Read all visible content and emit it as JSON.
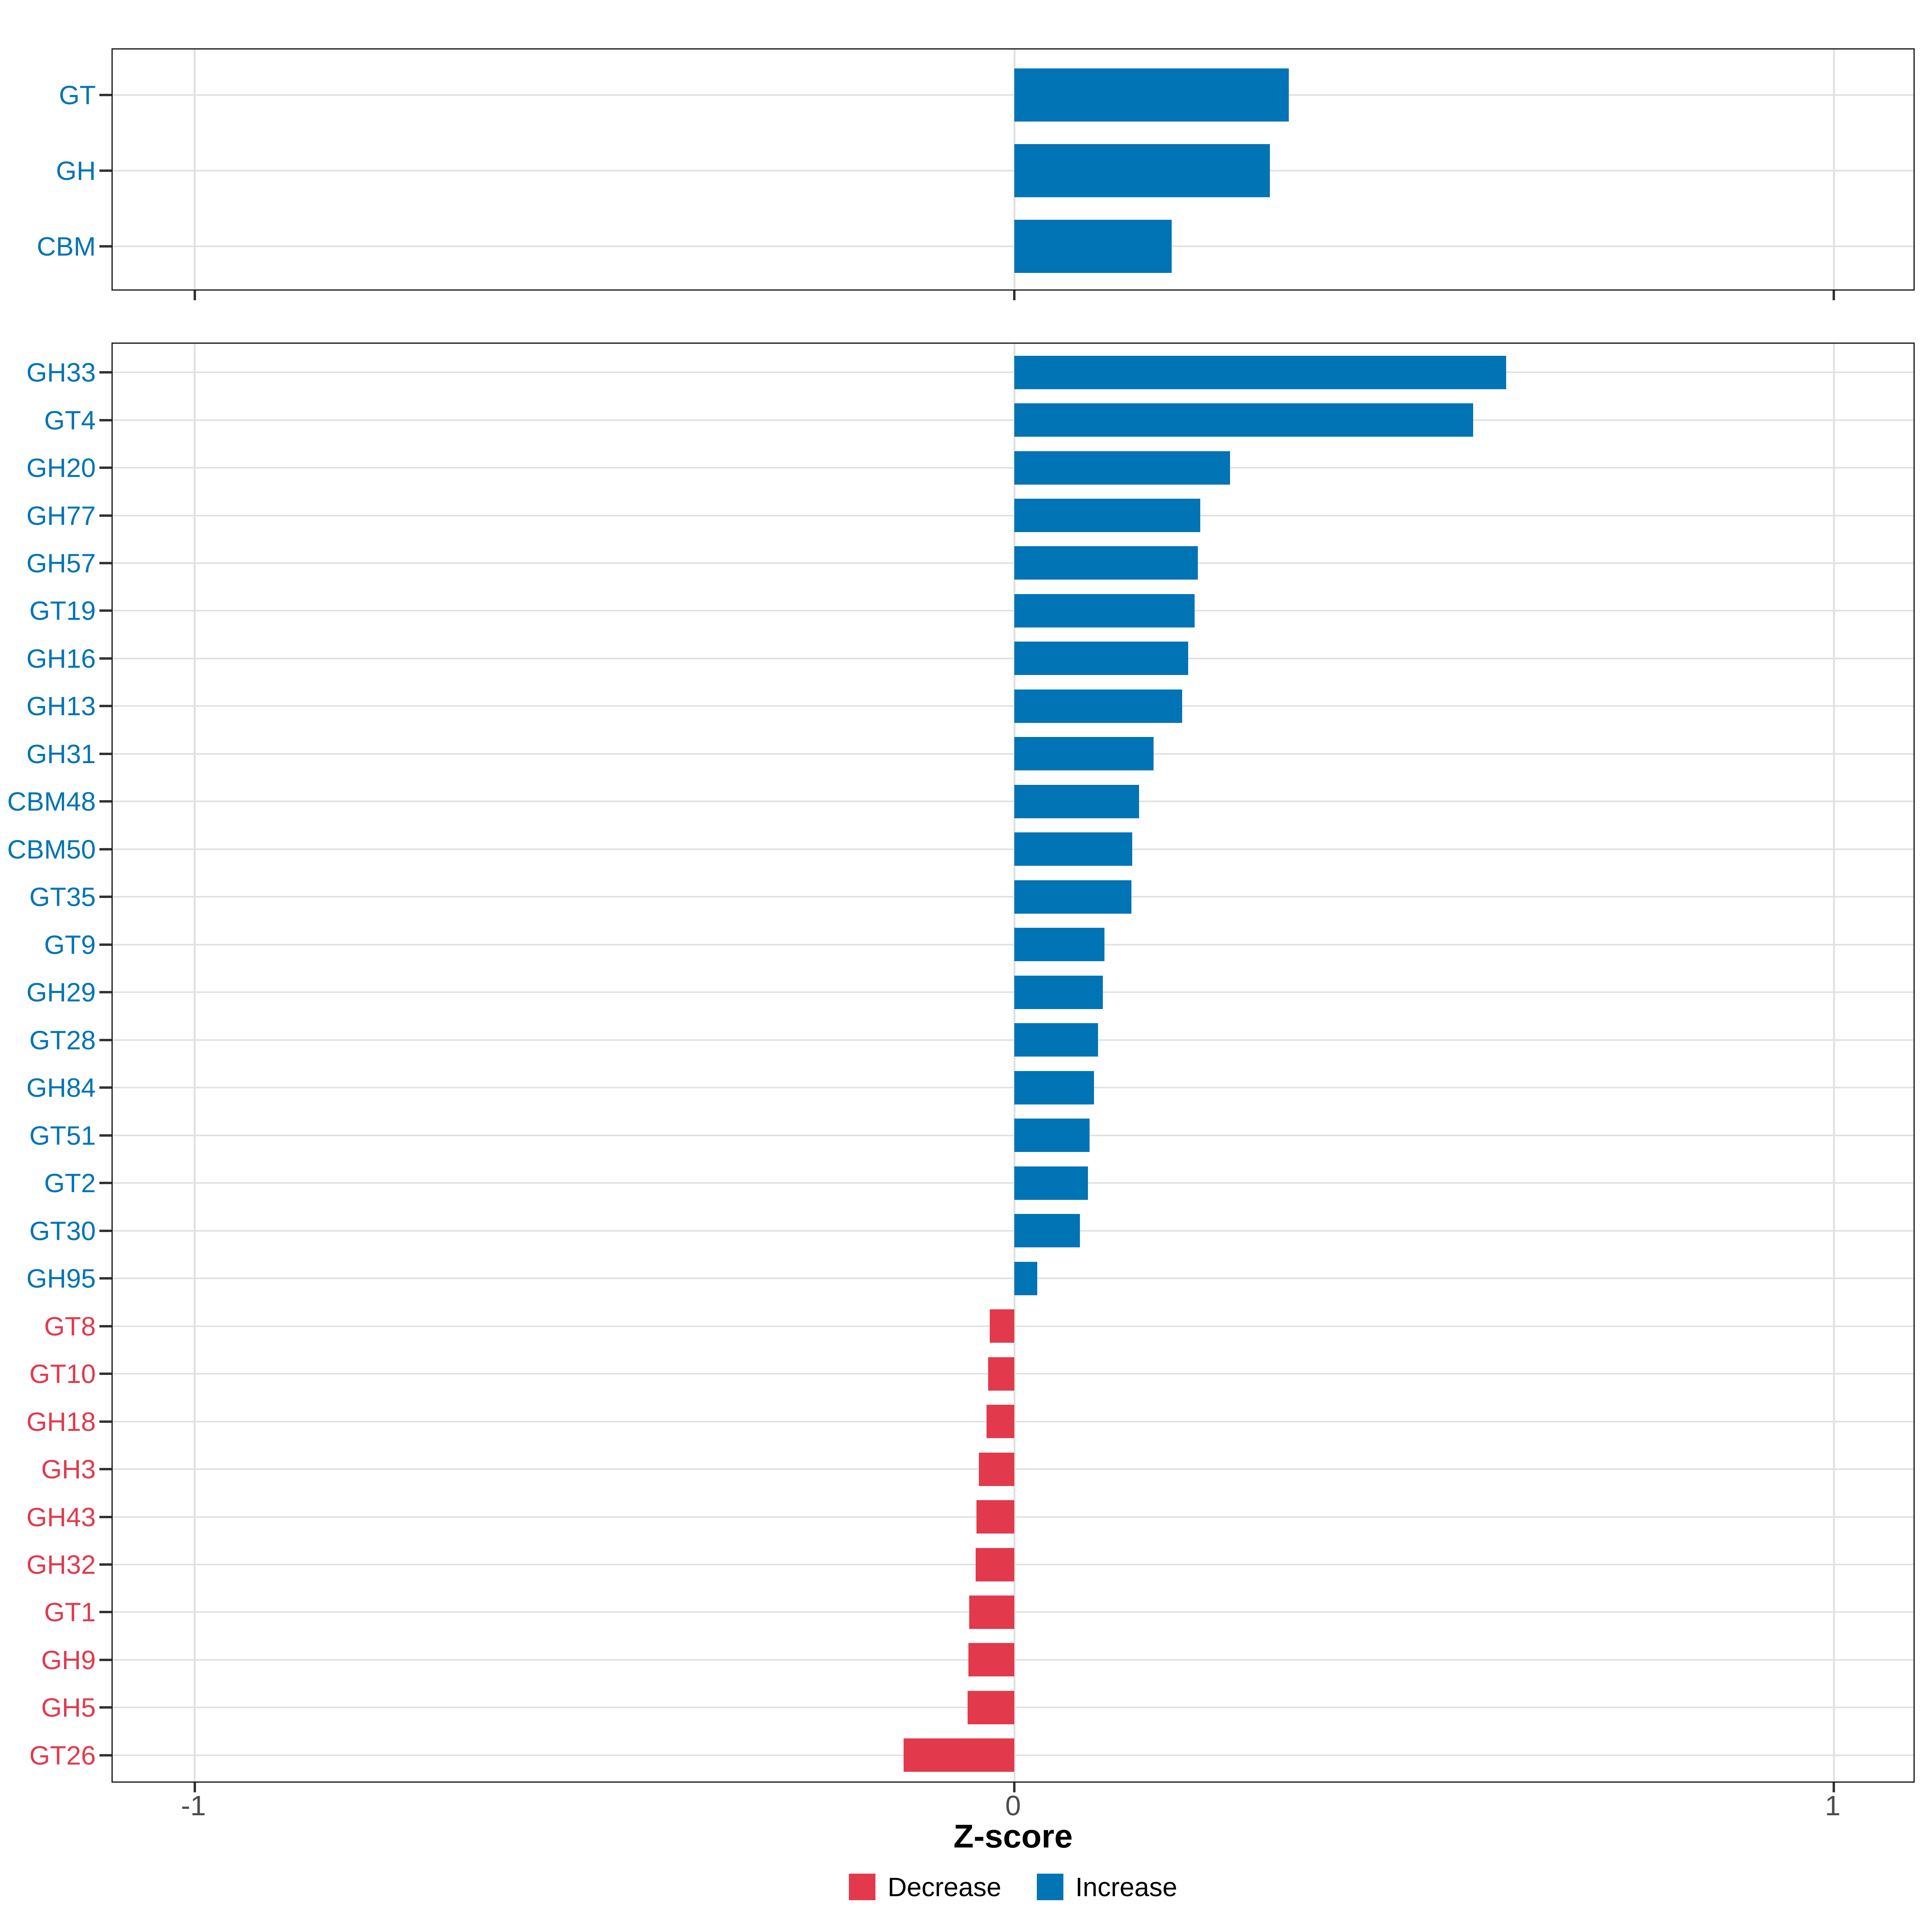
{
  "chart_data": {
    "type": "bar",
    "orientation": "horizontal",
    "xlabel": "Z-score",
    "xlim": [
      -1.1,
      1.1
    ],
    "x_ticks": [
      {
        "value": -1,
        "label": "-1"
      },
      {
        "value": 0,
        "label": "0"
      },
      {
        "value": 1,
        "label": "1"
      }
    ],
    "grid": true,
    "legend_position": "bottom",
    "legend": [
      {
        "label": "Decrease",
        "color": "#e23a4c"
      },
      {
        "label": "Increase",
        "color": "#0074b4"
      }
    ],
    "panels": [
      {
        "name": "class-summary",
        "categories": [
          "GT",
          "GH",
          "CBM"
        ],
        "values": [
          0.335,
          0.312,
          0.192
        ]
      },
      {
        "name": "family-detail",
        "categories": [
          "GH33",
          "GT4",
          "GH20",
          "GH77",
          "GH57",
          "GT19",
          "GH16",
          "GH13",
          "GH31",
          "CBM48",
          "CBM50",
          "GT35",
          "GT9",
          "GH29",
          "GT28",
          "GH84",
          "GT51",
          "GT2",
          "GT30",
          "GH95",
          "GT8",
          "GT10",
          "GH18",
          "GH3",
          "GH43",
          "GH32",
          "GT1",
          "GH9",
          "GH5",
          "GT26"
        ],
        "values": [
          0.6,
          0.56,
          0.263,
          0.227,
          0.224,
          0.22,
          0.212,
          0.205,
          0.17,
          0.152,
          0.144,
          0.143,
          0.11,
          0.108,
          0.102,
          0.097,
          0.092,
          0.09,
          0.08,
          0.028,
          -0.03,
          -0.032,
          -0.034,
          -0.043,
          -0.046,
          -0.047,
          -0.055,
          -0.056,
          -0.057,
          -0.135
        ]
      }
    ]
  },
  "colors": {
    "increase": "#0074b4",
    "decrease": "#e23a4c",
    "grid": "#e2e2e2",
    "panel_border": "#1a1a1a",
    "axis_tick": "#333333",
    "tick_label_text": "#4d4d4d",
    "axis_title_text": "#000000",
    "background": "#ffffff"
  }
}
